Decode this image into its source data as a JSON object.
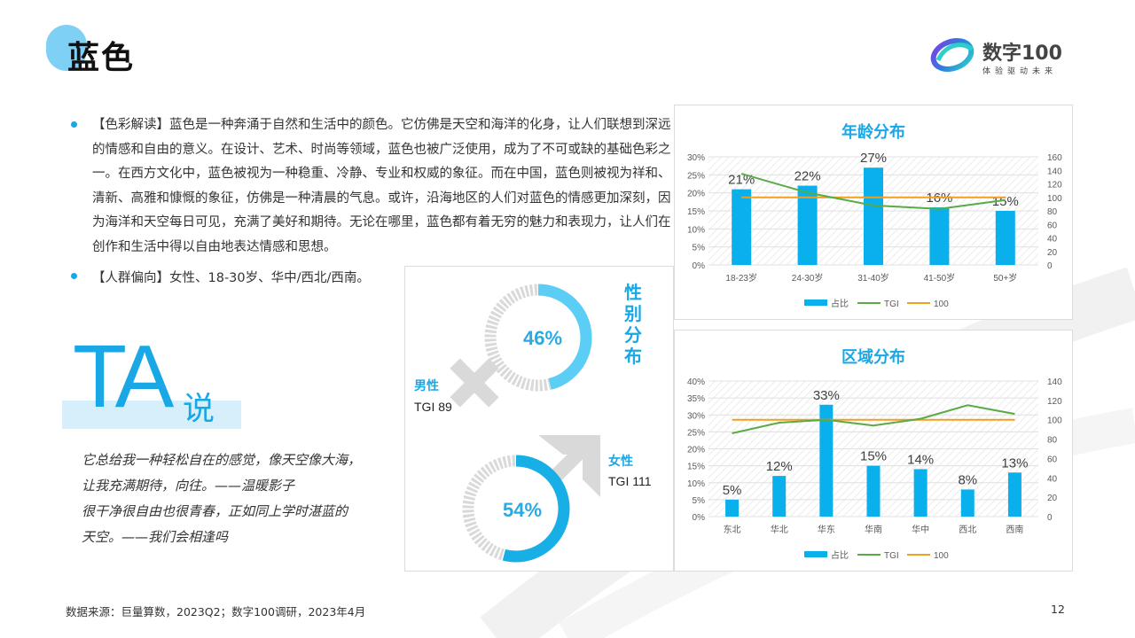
{
  "header": {
    "title": "蓝色",
    "logo_name": "数字100",
    "logo_tagline": "体验驱动未来"
  },
  "text": {
    "color_reading": "【色彩解读】蓝色是一种奔涌于自然和生活中的颜色。它仿佛是天空和海洋的化身，让人们联想到深远的情感和自由的意义。在设计、艺术、时尚等领域，蓝色也被广泛使用，成为了不可或缺的基础色彩之一。在西方文化中，蓝色被视为一种稳重、冷静、专业和权威的象征。而在中国，蓝色则被视为祥和、清新、高雅和慷慨的象征，仿佛是一种清晨的气息。或许，沿海地区的人们对蓝色的情感更加深刻，因为海洋和天空每日可见，充满了美好和期待。无论在哪里，蓝色都有着无穷的魅力和表现力，让人们在创作和生活中得以自由地表达情感和思想。",
    "audience": "【人群偏向】女性、18-30岁、华中/西北/西南。"
  },
  "ta": {
    "big": "TA",
    "small": "说",
    "quote_lines": [
      "它总给我一种轻松自在的感觉，像天空像大海，",
      "让我充满期待，向往。——温暖影子",
      "很干净很自由也很青春，正如同上学时湛蓝的",
      "天空。——我们会相逢吗"
    ]
  },
  "gender": {
    "title": "性别分布",
    "male_label": "男性",
    "male_tgi": "TGI 89",
    "male_pct": "46%",
    "male_value": 46,
    "female_label": "女性",
    "female_tgi": "TGI 111",
    "female_pct": "54%",
    "female_value": 54,
    "ring_color": "#5ccdf5",
    "ring_color_2": "#18aee6",
    "track_color": "#d9d9d9"
  },
  "colors": {
    "accent": "#1aa7e6",
    "bar": "#0ab0ec",
    "tgi_line": "#5aaa46",
    "ref_line": "#f0a020"
  },
  "chart_data": [
    {
      "type": "bar",
      "title": "年龄分布",
      "categories": [
        "18-23岁",
        "24-30岁",
        "31-40岁",
        "41-50岁",
        "50+岁"
      ],
      "series": [
        {
          "name": "占比",
          "values": [
            21,
            22,
            27,
            16,
            15
          ],
          "labels": [
            "21%",
            "22%",
            "27%",
            "16%",
            "15%"
          ],
          "axis": "left"
        },
        {
          "name": "TGI",
          "type": "line",
          "values": [
            135,
            107,
            88,
            83,
            96
          ],
          "axis": "right"
        },
        {
          "name": "100",
          "type": "line",
          "values": [
            100,
            100,
            100,
            100,
            100
          ],
          "axis": "right"
        }
      ],
      "ylim": [
        0,
        30
      ],
      "y_ticks": [
        "0%",
        "5%",
        "10%",
        "15%",
        "20%",
        "25%",
        "30%"
      ],
      "y2lim": [
        0,
        160
      ],
      "y2_ticks": [
        "0",
        "20",
        "40",
        "60",
        "80",
        "100",
        "120",
        "140",
        "160"
      ],
      "legend": "bottom",
      "grid": true
    },
    {
      "type": "bar",
      "title": "区域分布",
      "categories": [
        "东北",
        "华北",
        "华东",
        "华南",
        "华中",
        "西北",
        "西南"
      ],
      "series": [
        {
          "name": "占比",
          "values": [
            5,
            12,
            33,
            15,
            14,
            8,
            13
          ],
          "labels": [
            "5%",
            "12%",
            "33%",
            "15%",
            "14%",
            "8%",
            "13%"
          ],
          "axis": "left"
        },
        {
          "name": "TGI",
          "type": "line",
          "values": [
            86,
            97,
            100,
            94,
            101,
            115,
            106
          ],
          "axis": "right"
        },
        {
          "name": "100",
          "type": "line",
          "values": [
            100,
            100,
            100,
            100,
            100,
            100,
            100
          ],
          "axis": "right"
        }
      ],
      "ylim": [
        0,
        40
      ],
      "y_ticks": [
        "0%",
        "5%",
        "10%",
        "15%",
        "20%",
        "25%",
        "30%",
        "35%",
        "40%"
      ],
      "y2lim": [
        0,
        140
      ],
      "y2_ticks": [
        "0",
        "20",
        "40",
        "60",
        "80",
        "100",
        "120",
        "140"
      ],
      "legend": "bottom",
      "grid": true
    }
  ],
  "footer": {
    "source": "数据来源：巨量算数，2023Q2；数字100调研，2023年4月",
    "page_number": "12"
  }
}
